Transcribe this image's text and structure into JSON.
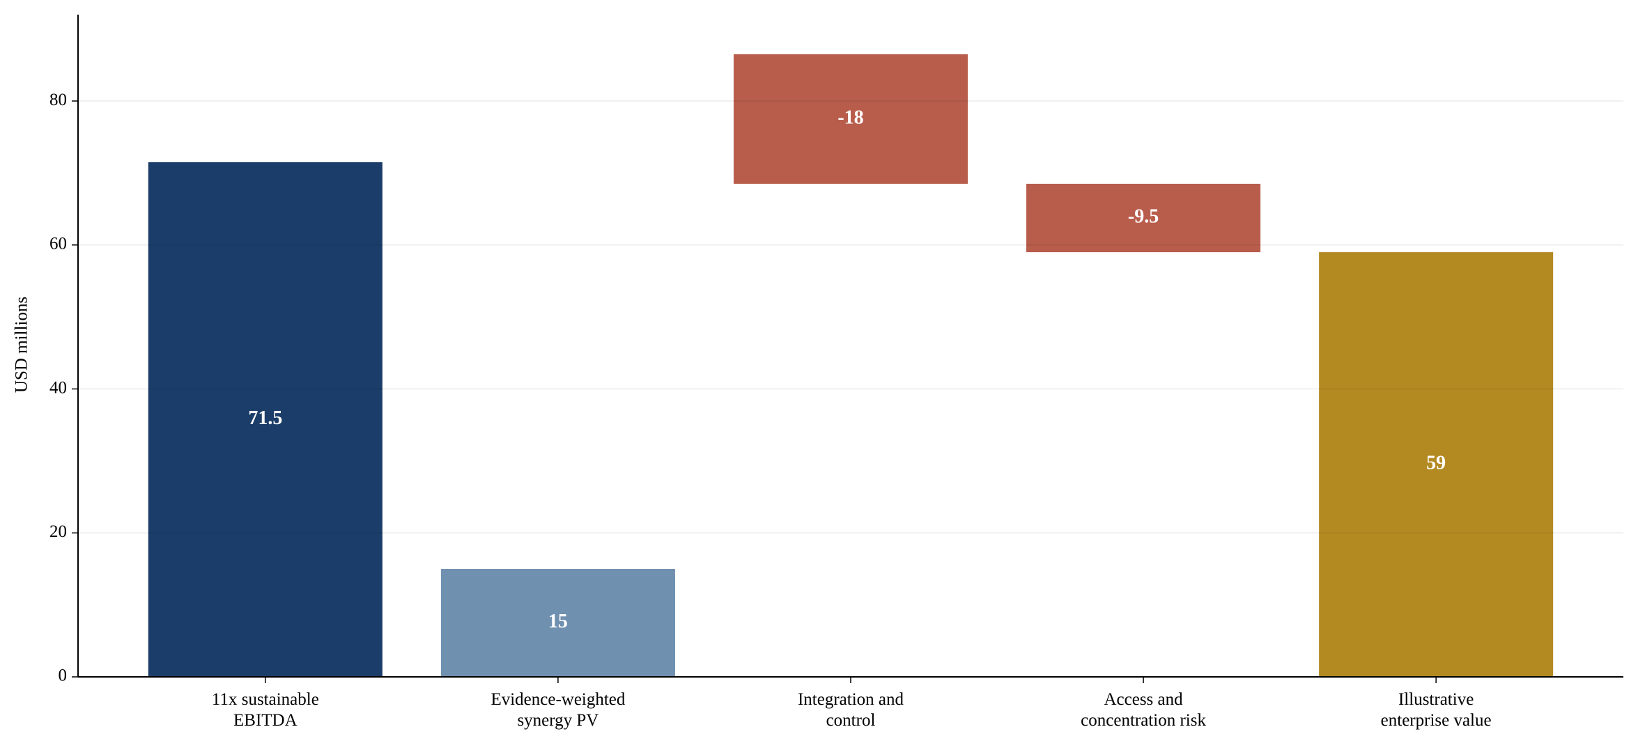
{
  "chart_data": {
    "type": "waterfall",
    "y_label": "USD millions",
    "categories": [
      "11x sustainable\nEBITDA",
      "Evidence-weighted\nsynergy PV",
      "Integration and\ncontrol",
      "Access and\nconcentration risk",
      "Illustrative\nenterprise value"
    ],
    "values": [
      71.5,
      15,
      -18,
      -9.5,
      59
    ],
    "colors": [
      "#1b3d69",
      "#7090b0",
      "#b85d4c",
      "#b85d4c",
      "#b38a22"
    ],
    "ylim": [
      0,
      92
    ],
    "yticks": [
      0,
      20,
      40,
      60,
      80
    ],
    "grid": true
  }
}
